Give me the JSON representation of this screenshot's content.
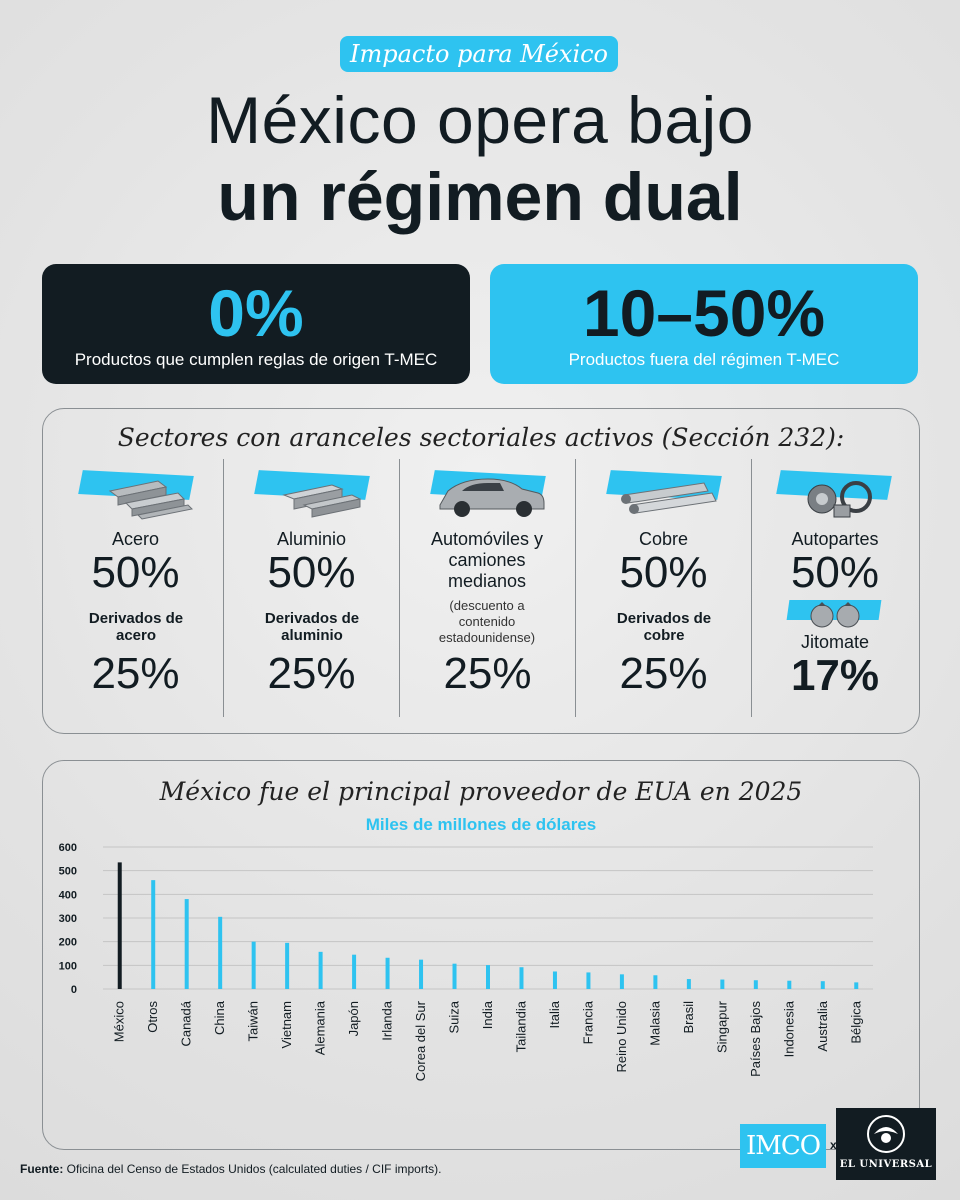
{
  "tag": "Impacto para México",
  "title": {
    "line1": "México opera bajo",
    "line2": "un régimen dual"
  },
  "boxes": [
    {
      "value": "0%",
      "label": "Productos que cumplen reglas de origen T-MEC"
    },
    {
      "value": "10–50%",
      "label": "Productos fuera del régimen T-MEC"
    }
  ],
  "sectors": {
    "title": "Sectores con aranceles sectoriales activos (Sección 232):",
    "items": [
      {
        "name": "Acero",
        "rate": "50%",
        "derived_label": "Derivados de acero",
        "derived_rate": "25%",
        "icon": "steel-bars-icon"
      },
      {
        "name": "Aluminio",
        "rate": "50%",
        "derived_label": "Derivados de aluminio",
        "derived_rate": "25%",
        "icon": "aluminum-profiles-icon"
      },
      {
        "name": "Automóviles y camiones medianos",
        "note": "(descuento a contenido estadounidense)",
        "rate": "25%",
        "icon": "car-icon"
      },
      {
        "name": "Cobre",
        "rate": "50%",
        "derived_label": "Derivados de cobre",
        "derived_rate": "25%",
        "icon": "copper-pipes-icon"
      },
      {
        "name": "Autopartes",
        "rate": "50%",
        "extra_label": "Jitomate",
        "extra_rate": "17%",
        "icon": "auto-parts-icon",
        "extra_icon": "tomato-icon"
      }
    ]
  },
  "chart": {
    "title": "México fue el principal proveedor de EUA en 2025",
    "subtitle": "Miles de millones de dólares"
  },
  "chart_data": {
    "type": "bar",
    "categories": [
      "México",
      "Otros",
      "Canadá",
      "China",
      "Taiwán",
      "Vietnam",
      "Alemania",
      "Japón",
      "Irlanda",
      "Corea del Sur",
      "Suiza",
      "India",
      "Tailandia",
      "Italia",
      "Francia",
      "Reino Unido",
      "Malasia",
      "Brasil",
      "Singapur",
      "Países Bajos",
      "Indonesia",
      "Australia",
      "Bélgica"
    ],
    "values": [
      535,
      460,
      380,
      305,
      200,
      195,
      157,
      145,
      132,
      124,
      107,
      101,
      92,
      74,
      70,
      62,
      58,
      42,
      40,
      37,
      35,
      33,
      28
    ],
    "yticks": [
      0,
      100,
      200,
      300,
      400,
      500,
      600
    ],
    "ylim": [
      0,
      600
    ],
    "grid": true,
    "colors": {
      "highlight": "#121c22",
      "default": "#2ec3f0",
      "grid": "#c5c5c5"
    }
  },
  "footer": {
    "source_label": "Fuente:",
    "source_text": " Oficina del Censo de Estados Unidos (calculated duties / CIF imports).",
    "logo1": "IMCO",
    "separator": "x",
    "logo2": "EL UNIVERSAL"
  }
}
